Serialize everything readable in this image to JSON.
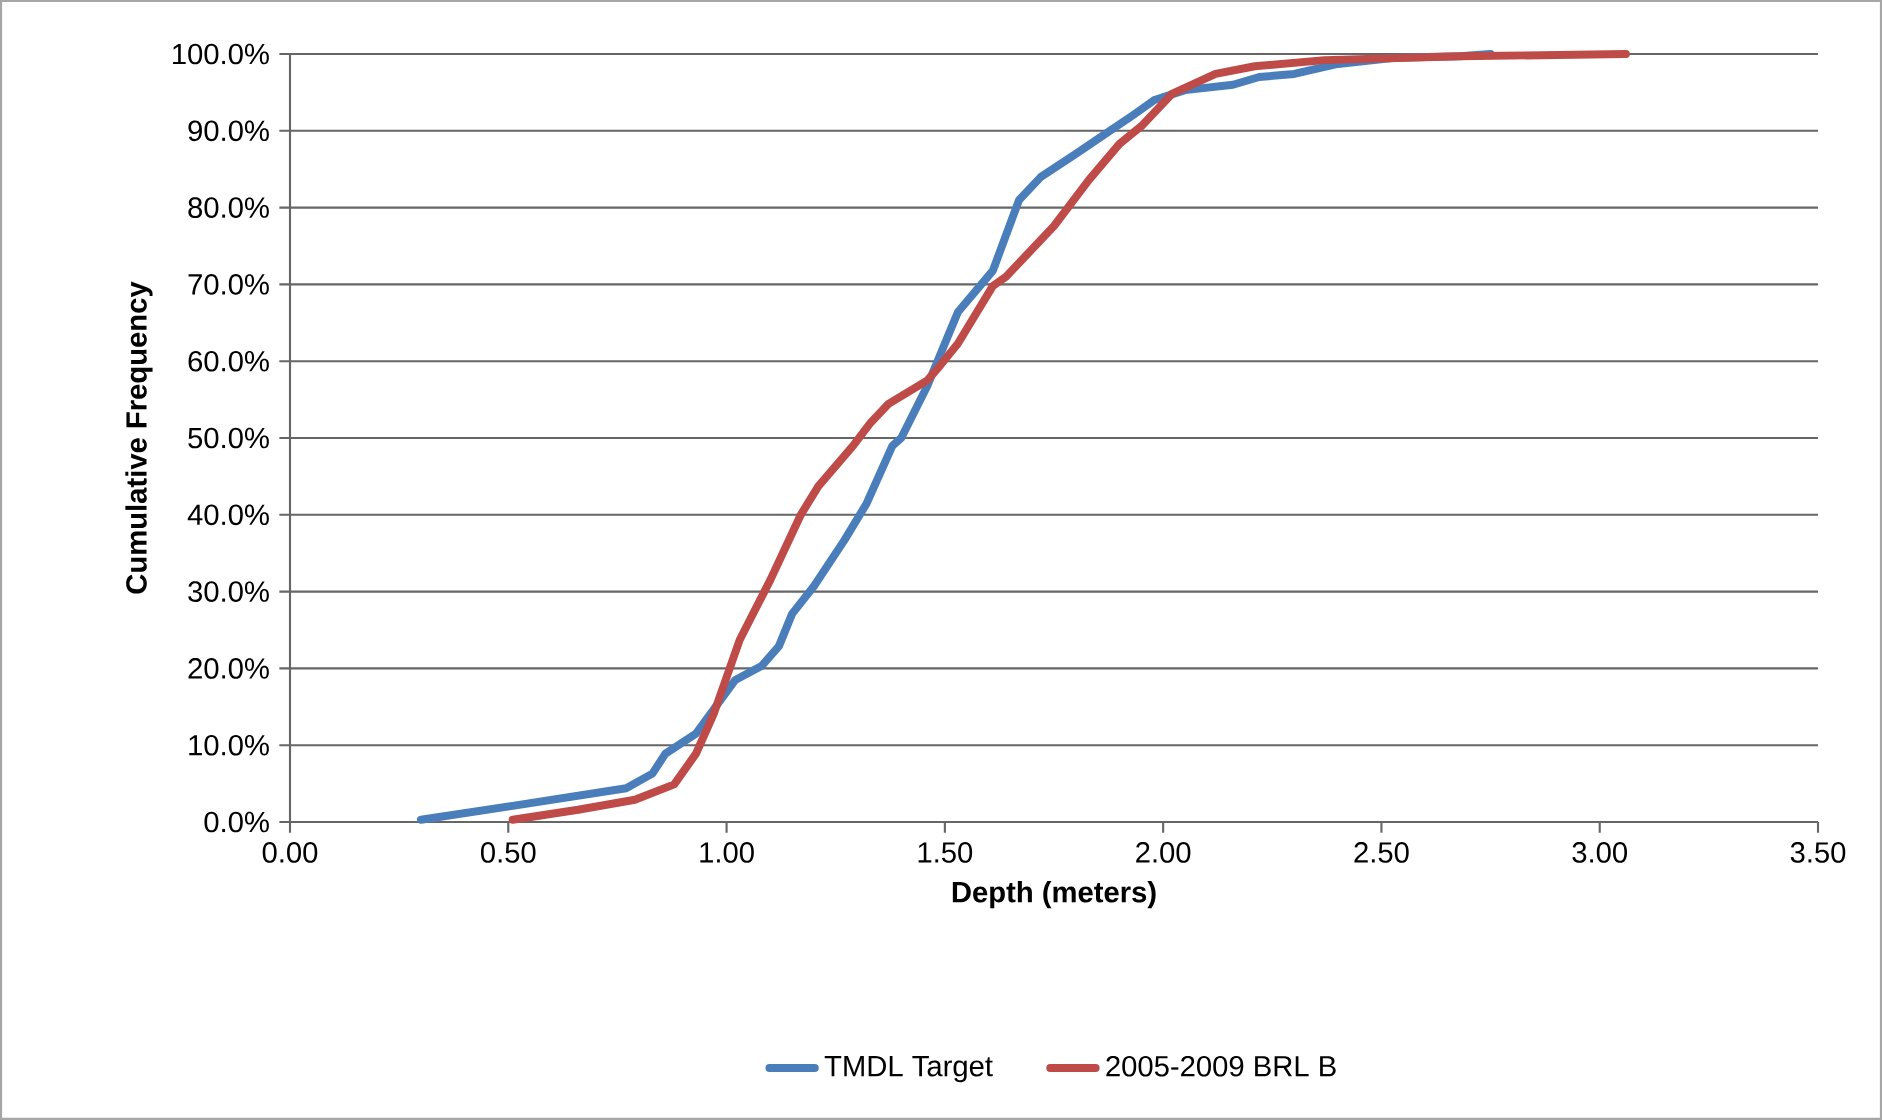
{
  "chart_data": {
    "type": "line",
    "xlabel": "Depth (meters)",
    "ylabel": "Cumulative Frequency",
    "xlim": [
      0,
      3.5
    ],
    "ylim": [
      0,
      100
    ],
    "xticks": [
      {
        "value": 0,
        "label": "0.00"
      },
      {
        "value": 0.5,
        "label": "0.50"
      },
      {
        "value": 1,
        "label": "1.00"
      },
      {
        "value": 1.5,
        "label": "1.50"
      },
      {
        "value": 2,
        "label": "2.00"
      },
      {
        "value": 2.5,
        "label": "2.50"
      },
      {
        "value": 3,
        "label": "3.00"
      },
      {
        "value": 3.5,
        "label": "3.50"
      }
    ],
    "yticks": [
      {
        "value": 0,
        "label": "0.0%"
      },
      {
        "value": 10,
        "label": "10.0%"
      },
      {
        "value": 20,
        "label": "20.0%"
      },
      {
        "value": 30,
        "label": "30.0%"
      },
      {
        "value": 40,
        "label": "40.0%"
      },
      {
        "value": 50,
        "label": "50.0%"
      },
      {
        "value": 60,
        "label": "60.0%"
      },
      {
        "value": 70,
        "label": "70.0%"
      },
      {
        "value": 80,
        "label": "80.0%"
      },
      {
        "value": 90,
        "label": "90.0%"
      },
      {
        "value": 100,
        "label": "100.0%"
      }
    ],
    "grid": "y",
    "legend": "bottom",
    "line_style": "solid",
    "series": [
      {
        "name": "TMDL Target",
        "color": "#4a7ebb",
        "x": [
          0.3,
          0.51,
          0.77,
          0.83,
          0.86,
          0.93,
          1.02,
          1.08,
          1.12,
          1.15,
          1.2,
          1.27,
          1.32,
          1.38,
          1.4,
          1.46,
          1.5,
          1.53,
          1.61,
          1.67,
          1.72,
          1.8,
          1.86,
          1.93,
          1.98,
          2.05,
          2.16,
          2.22,
          2.3,
          2.4,
          2.53,
          2.68,
          2.75
        ],
        "values": [
          0.3,
          2.1,
          4.4,
          6.3,
          8.9,
          11.5,
          18.5,
          20.3,
          22.9,
          27.1,
          30.7,
          36.7,
          41.4,
          49,
          50,
          56.8,
          62.3,
          66.4,
          71.8,
          81,
          84,
          87,
          89.3,
          92,
          94,
          95.3,
          96,
          97,
          97.4,
          98.7,
          99.5,
          99.7,
          100
        ]
      },
      {
        "name": "2005-2009 BRL B",
        "color": "#be4b48",
        "x": [
          0.51,
          0.66,
          0.79,
          0.88,
          0.93,
          0.97,
          1.03,
          1.1,
          1.17,
          1.21,
          1.29,
          1.33,
          1.37,
          1.46,
          1.49,
          1.53,
          1.61,
          1.64,
          1.75,
          1.83,
          1.9,
          1.95,
          2.02,
          2.12,
          2.21,
          2.37,
          2.68,
          3.06
        ],
        "values": [
          0.3,
          1.6,
          2.9,
          4.9,
          8.9,
          14,
          23.7,
          31.5,
          40,
          43.7,
          49,
          52,
          54.4,
          57.5,
          59.5,
          62.3,
          69.8,
          71,
          77.6,
          83.6,
          88.3,
          90.6,
          94.8,
          97.4,
          98.4,
          99.2,
          99.7,
          100
        ]
      }
    ]
  }
}
